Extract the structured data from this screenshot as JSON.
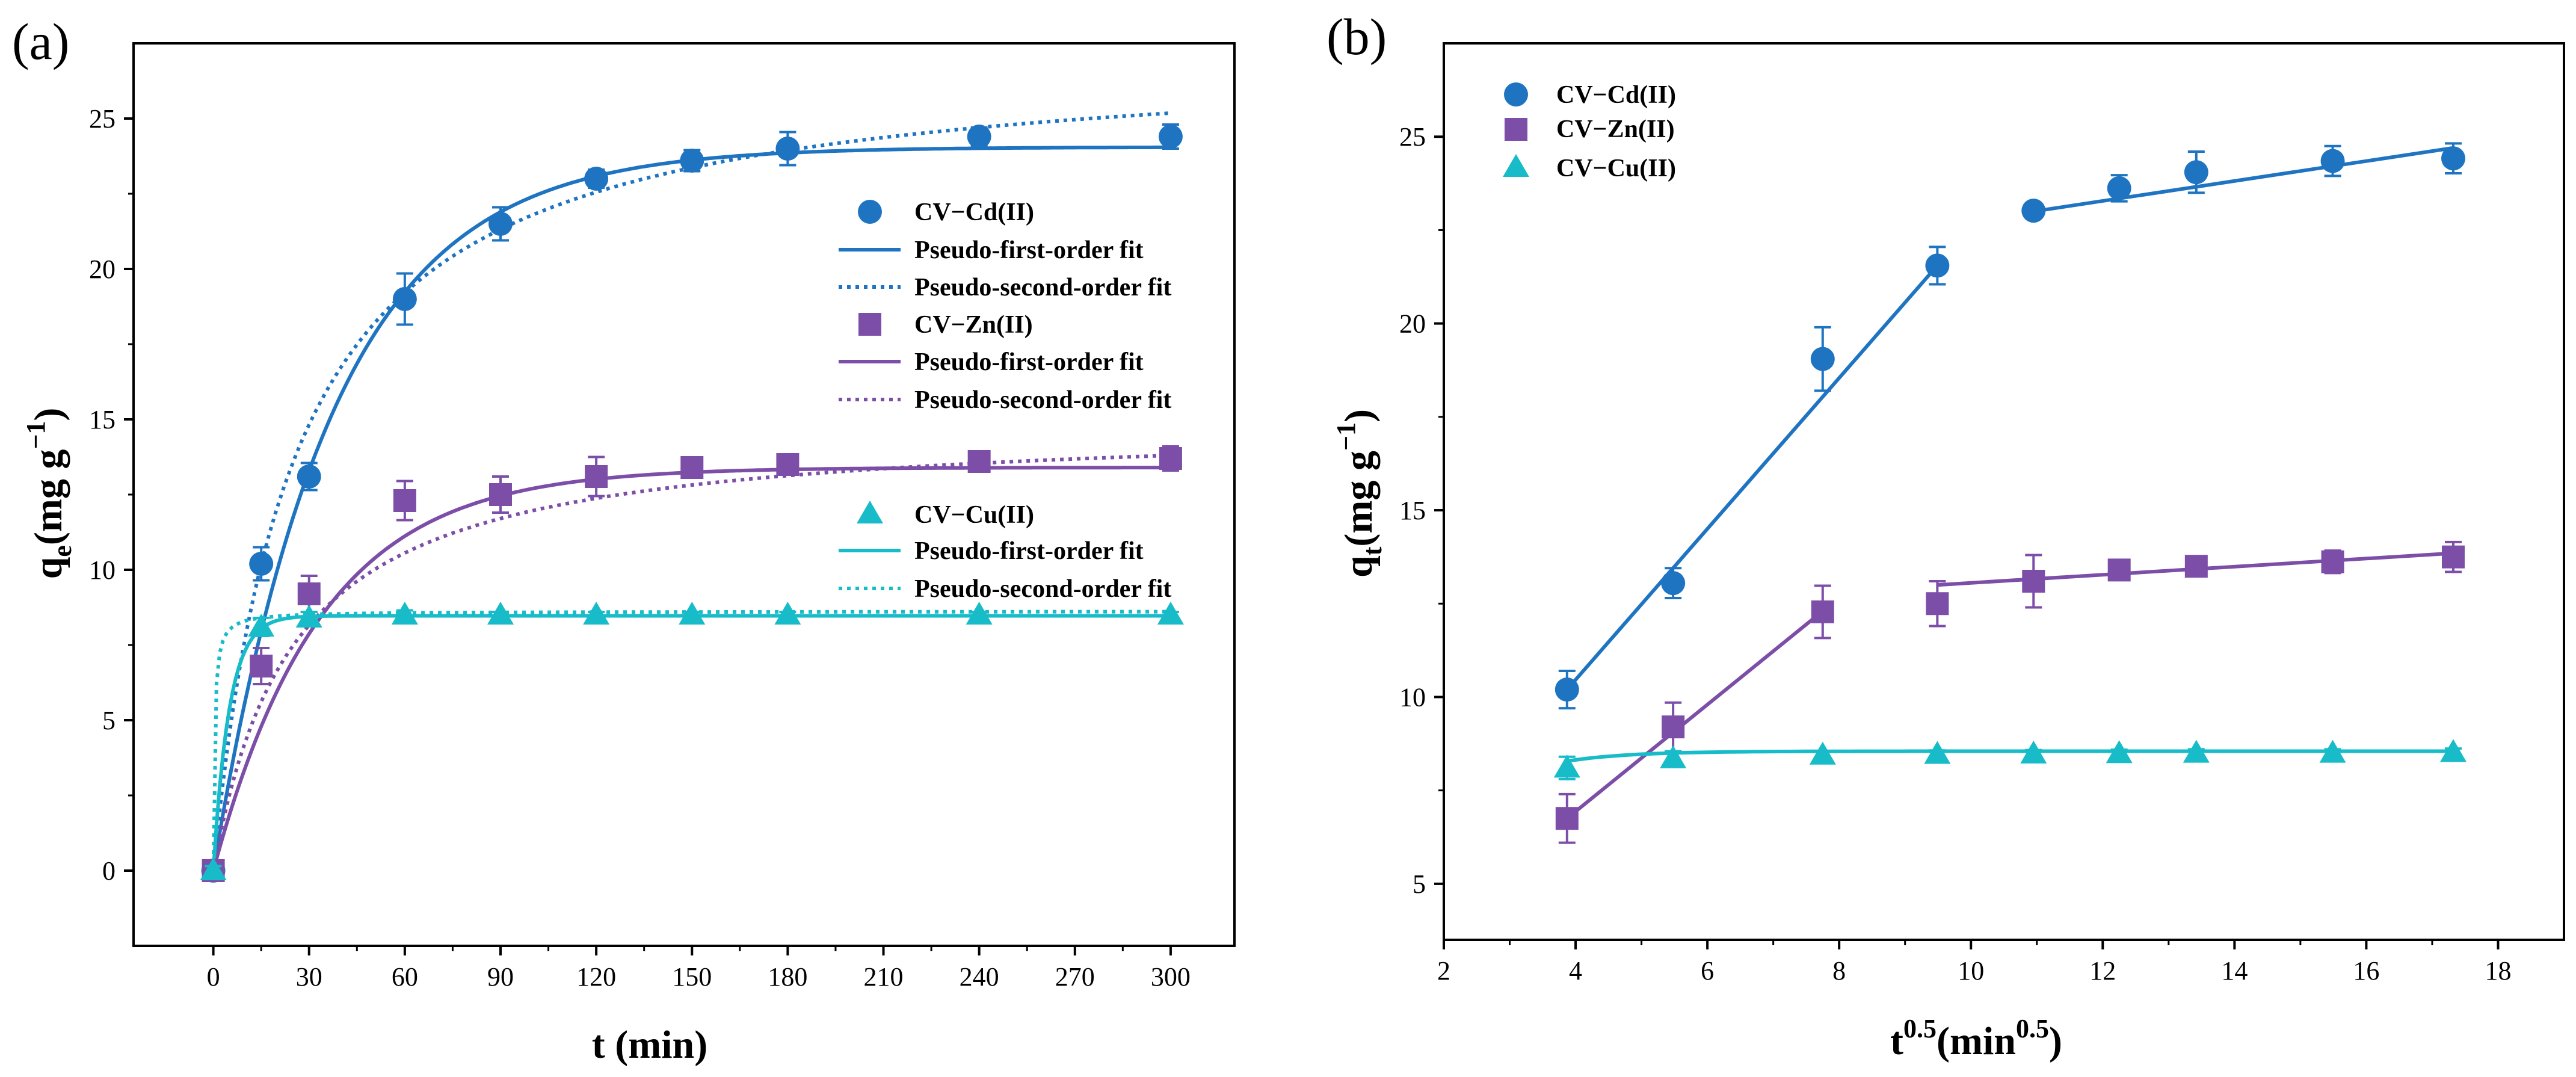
{
  "colors": {
    "cd": "#1f74c2",
    "zn": "#7c4ea8",
    "cu": "#17bcc8"
  },
  "panel_a_label": "(a)",
  "panel_b_label": "(b)",
  "chart_data": [
    {
      "type": "scatter",
      "panel": "(a)",
      "title": "",
      "xlabel": "t (min)",
      "ylabel_main": "q",
      "ylabel_sub": "e",
      "ylabel_units": "(mg g",
      "ylabel_sup": "−1",
      "ylabel_close": ")",
      "xlim": [
        -25,
        320
      ],
      "ylim": [
        -2.5,
        27.5
      ],
      "x_ticks": [
        0,
        30,
        60,
        90,
        120,
        150,
        180,
        210,
        240,
        270,
        300
      ],
      "x_tick_labels": [
        "0",
        "30",
        "60",
        "90",
        "120",
        "150",
        "180",
        "210",
        "240",
        "270",
        "300"
      ],
      "y_ticks": [
        0,
        5,
        10,
        15,
        20,
        25
      ],
      "y_tick_labels": [
        "0",
        "5",
        "10",
        "15",
        "20",
        "25"
      ],
      "legend_position": "right",
      "series": [
        {
          "name": "CV−Cd(II)",
          "key": "cd",
          "marker": "circle",
          "x": [
            0,
            15,
            30,
            60,
            90,
            120,
            150,
            180,
            240,
            300
          ],
          "y": [
            0,
            10.2,
            13.1,
            19.0,
            21.5,
            23.0,
            23.6,
            24.0,
            24.4,
            24.4
          ],
          "err": [
            0.2,
            0.55,
            0.45,
            0.85,
            0.55,
            0.3,
            0.35,
            0.55,
            0.3,
            0.4
          ],
          "pfo": {
            "label": "Pseudo-first-order fit",
            "qe": 24.05,
            "k1": 0.0268
          },
          "pso": {
            "label": "Pseudo-second-order fit",
            "qe": 27.3,
            "k2": 0.00145
          }
        },
        {
          "name": "CV−Zn(II)",
          "key": "zn",
          "marker": "square",
          "x": [
            0,
            15,
            30,
            60,
            90,
            120,
            150,
            180,
            240,
            300
          ],
          "y": [
            0,
            6.8,
            9.2,
            12.3,
            12.5,
            13.1,
            13.4,
            13.5,
            13.6,
            13.7
          ],
          "err": [
            0.2,
            0.6,
            0.6,
            0.65,
            0.6,
            0.65,
            0.25,
            0.2,
            0.3,
            0.4
          ],
          "pfo": {
            "label": "Pseudo-first-order fit",
            "qe": 13.4,
            "k1": 0.0295
          },
          "pso": {
            "label": "Pseudo-second-order fit",
            "qe": 14.95,
            "k2": 0.00268
          }
        },
        {
          "name": "CV−Cu(II)",
          "key": "cu",
          "marker": "triangle",
          "x": [
            0,
            15,
            30,
            60,
            90,
            120,
            150,
            180,
            240,
            300
          ],
          "y": [
            0,
            8.1,
            8.4,
            8.5,
            8.5,
            8.5,
            8.5,
            8.5,
            8.5,
            8.5
          ],
          "err": [
            0.15,
            0.3,
            0.2,
            0.15,
            0.1,
            0.1,
            0.1,
            0.1,
            0.1,
            0.1
          ],
          "pfo": {
            "label": "Pseudo-first-order fit",
            "qe": 8.47,
            "k1": 0.2
          },
          "pso": {
            "label": "Pseudo-second-order fit",
            "qe": 8.62,
            "k2": 0.3
          }
        }
      ]
    },
    {
      "type": "scatter",
      "panel": "(b)",
      "title": "",
      "xlabel_main": "t",
      "xlabel_sup": "0.5",
      "xlabel_units": "(min",
      "xlabel_units_sup": "0.5",
      "xlabel_close": ")",
      "ylabel_main": "q",
      "ylabel_sub": "t",
      "ylabel_units": "(mg g",
      "ylabel_sup": "−1",
      "ylabel_close": ")",
      "xlim": [
        2,
        19
      ],
      "ylim": [
        3.5,
        27.5
      ],
      "x_ticks": [
        2,
        4,
        6,
        8,
        10,
        12,
        14,
        16,
        18
      ],
      "x_tick_labels": [
        "2",
        "4",
        "6",
        "8",
        "10",
        "12",
        "14",
        "16",
        "18"
      ],
      "y_ticks": [
        5,
        10,
        15,
        20,
        25
      ],
      "y_tick_labels": [
        "5",
        "10",
        "15",
        "20",
        "25"
      ],
      "legend_position": "top-left",
      "series": [
        {
          "name": "CV−Cd(II)",
          "key": "cd",
          "marker": "circle",
          "x": [
            3.87,
            5.48,
            7.75,
            9.49,
            10.95,
            12.25,
            13.42,
            15.49,
            17.32
          ],
          "y": [
            10.2,
            13.05,
            19.05,
            21.55,
            23.02,
            23.62,
            24.05,
            24.35,
            24.42
          ],
          "err": [
            0.5,
            0.4,
            0.85,
            0.5,
            0.2,
            0.35,
            0.55,
            0.4,
            0.4
          ],
          "fits": [
            {
              "x": [
                3.87,
                9.49
              ],
              "y": [
                10.2,
                21.55
              ]
            },
            {
              "x": [
                10.95,
                17.32
              ],
              "y": [
                23.0,
                24.7
              ]
            }
          ]
        },
        {
          "name": "CV−Zn(II)",
          "key": "zn",
          "marker": "square",
          "x": [
            3.87,
            5.48,
            7.75,
            9.49,
            10.95,
            12.25,
            13.42,
            15.49,
            17.32
          ],
          "y": [
            6.75,
            9.2,
            12.28,
            12.5,
            13.1,
            13.4,
            13.5,
            13.62,
            13.75
          ],
          "err": [
            0.65,
            0.65,
            0.7,
            0.6,
            0.7,
            0.2,
            0.15,
            0.3,
            0.4
          ],
          "fits": [
            {
              "x": [
                3.87,
                7.75
              ],
              "y": [
                6.75,
                12.3
              ]
            },
            {
              "x": [
                9.49,
                17.32
              ],
              "y": [
                13.0,
                13.85
              ]
            }
          ]
        },
        {
          "name": "CV−Cu(II)",
          "key": "cu",
          "marker": "triangle",
          "x": [
            3.87,
            5.48,
            7.75,
            9.49,
            10.95,
            12.25,
            13.42,
            15.49,
            17.32
          ],
          "y": [
            8.1,
            8.35,
            8.45,
            8.47,
            8.48,
            8.49,
            8.5,
            8.5,
            8.52
          ],
          "err": [
            0.3,
            0.2,
            0.1,
            0.1,
            0.1,
            0.1,
            0.1,
            0.1,
            0.1
          ],
          "fits": [
            {
              "type": "curve",
              "x0": 3.87,
              "x1": 17.32,
              "a": 8.55,
              "b": 1.9,
              "c": 1.05
            }
          ]
        }
      ]
    }
  ]
}
